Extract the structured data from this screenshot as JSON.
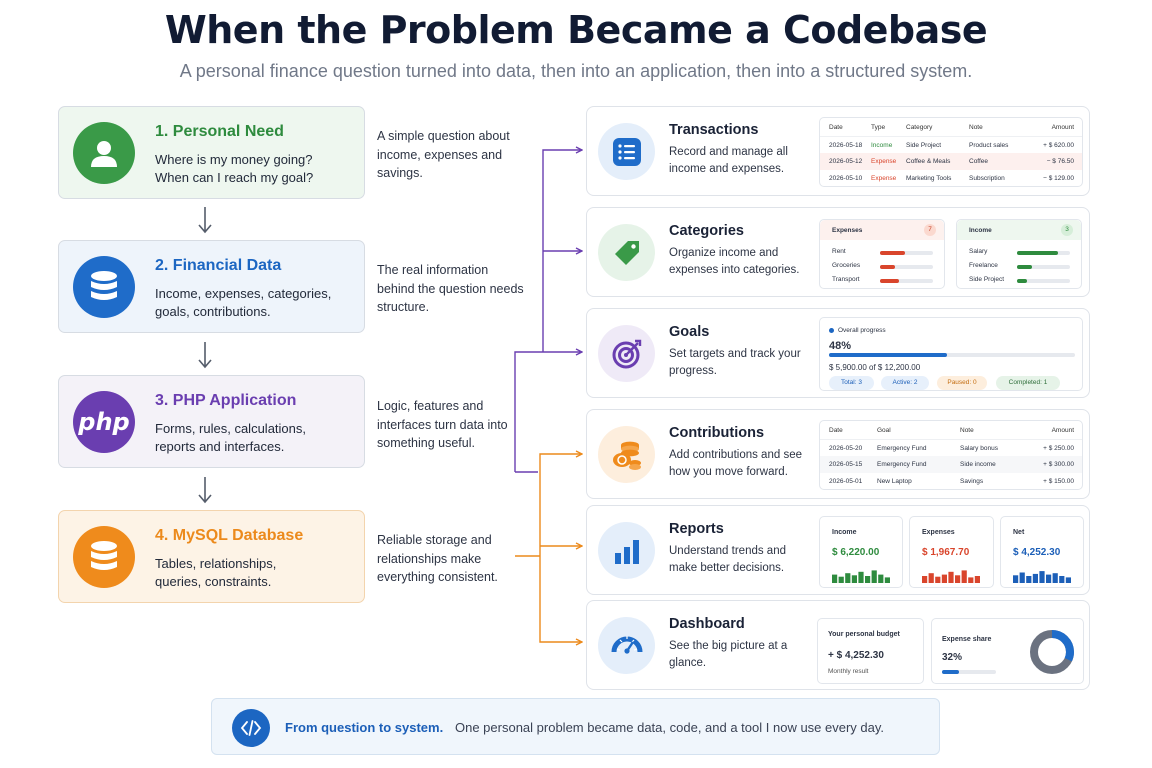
{
  "header": {
    "title": "When the Problem Became a Codebase",
    "subtitle": "A personal finance question turned into data, then into an application, then into a structured system."
  },
  "steps": [
    {
      "title": "1. Personal Need",
      "lines": [
        "Where is my money going?",
        "When can I reach my goal?"
      ],
      "desc": "A simple question about income, expenses and savings.",
      "color": "#2e8b3e",
      "icon": "user-icon"
    },
    {
      "title": "2. Financial Data",
      "lines": [
        "Income, expenses, categories,",
        "goals, contributions."
      ],
      "desc": "The real information behind the question needs structure.",
      "color": "#1c66c2",
      "icon": "database-icon"
    },
    {
      "title": "3. PHP Application",
      "lines": [
        "Forms, rules, calculations,",
        "reports and interfaces."
      ],
      "desc": "Logic, features and interfaces turn data into something useful.",
      "color": "#6a3eb0",
      "icon_text": "php"
    },
    {
      "title": "4. MySQL Database",
      "lines": [
        "Tables, relationships,",
        "queries, constraints."
      ],
      "desc": "Reliable storage and relationships make everything consistent.",
      "color": "#ec8a1c",
      "icon": "database-icon"
    }
  ],
  "features": {
    "transactions": {
      "title": "Transactions",
      "text": "Record and manage all income and expenses.",
      "icon": "list-icon",
      "table": {
        "headers": [
          "Date",
          "Type",
          "Category",
          "Note",
          "Amount"
        ],
        "rows": [
          [
            "2026-05-18",
            "Income",
            "Side Project",
            "Product sales",
            "+ $ 620.00"
          ],
          [
            "2026-05-12",
            "Expense",
            "Coffee & Meals",
            "Coffee",
            "− $ 76.50"
          ],
          [
            "2026-05-10",
            "Expense",
            "Marketing Tools",
            "Subscription",
            "− $ 129.00"
          ]
        ]
      }
    },
    "categories": {
      "title": "Categories",
      "text": "Organize income and expenses into categories.",
      "icon": "tag-icon",
      "expenses": {
        "label": "Expenses",
        "count": "7",
        "items": [
          {
            "name": "Rent",
            "share": 0.48
          },
          {
            "name": "Groceries",
            "share": 0.28
          },
          {
            "name": "Transport",
            "share": 0.36
          }
        ]
      },
      "income": {
        "label": "Income",
        "count": "3",
        "items": [
          {
            "name": "Salary",
            "share": 0.78
          },
          {
            "name": "Freelance",
            "share": 0.28
          },
          {
            "name": "Side Project",
            "share": 0.18
          }
        ]
      }
    },
    "goals": {
      "title": "Goals",
      "text": "Set targets and track your progress.",
      "icon": "target-icon",
      "overall_label": "Overall progress",
      "percent_label": "48%",
      "progress": 0.48,
      "amounts": "$ 5,900.00 of $ 12,200.00",
      "badges": [
        "Total: 3",
        "Active: 2",
        "Paused: 0",
        "Completed: 1"
      ]
    },
    "contributions": {
      "title": "Contributions",
      "text": "Add contributions and see how you move forward.",
      "icon": "coins-icon",
      "table": {
        "headers": [
          "Date",
          "Goal",
          "Note",
          "Amount"
        ],
        "rows": [
          [
            "2026-05-20",
            "Emergency Fund",
            "Salary bonus",
            "+ $ 250.00"
          ],
          [
            "2026-05-15",
            "Emergency Fund",
            "Side income",
            "+ $ 300.00"
          ],
          [
            "2026-05-01",
            "New Laptop",
            "Savings",
            "+ $ 150.00"
          ]
        ]
      }
    },
    "reports": {
      "title": "Reports",
      "text": "Understand trends and make better decisions.",
      "icon": "bar-chart-icon",
      "cards": [
        {
          "label": "Income",
          "value": "$ 6,220.00",
          "color": "#2e8b3e",
          "bars": [
            0.6,
            0.45,
            0.7,
            0.55,
            0.8,
            0.5,
            0.9,
            0.6,
            0.4
          ]
        },
        {
          "label": "Expenses",
          "value": "$ 1,967.70",
          "color": "#d9452c",
          "bars": [
            0.5,
            0.7,
            0.45,
            0.6,
            0.8,
            0.55,
            0.9,
            0.4,
            0.5
          ]
        },
        {
          "label": "Net",
          "value": "$ 4,252.30",
          "color": "#1c5fb8",
          "bars": [
            0.55,
            0.75,
            0.5,
            0.65,
            0.85,
            0.6,
            0.7,
            0.5,
            0.4
          ]
        }
      ]
    },
    "dashboard": {
      "title": "Dashboard",
      "text": "See the big picture at a glance.",
      "icon": "gauge-icon",
      "budget_label": "Your personal budget",
      "budget_value": "+ $ 4,252.30",
      "budget_note": "Monthly result",
      "share_label": "Expense share",
      "share_value": "32%",
      "share": 0.32
    }
  },
  "footer": {
    "strong": "From question to system.",
    "text": "One personal problem became data, code, and a tool I now use every day.",
    "icon": "code-icon"
  },
  "colors": {
    "purple": "#6a3eb0",
    "orange": "#ec8a1c",
    "green": "#2e8b3e",
    "blue": "#1c66c2",
    "red": "#d9452c"
  }
}
